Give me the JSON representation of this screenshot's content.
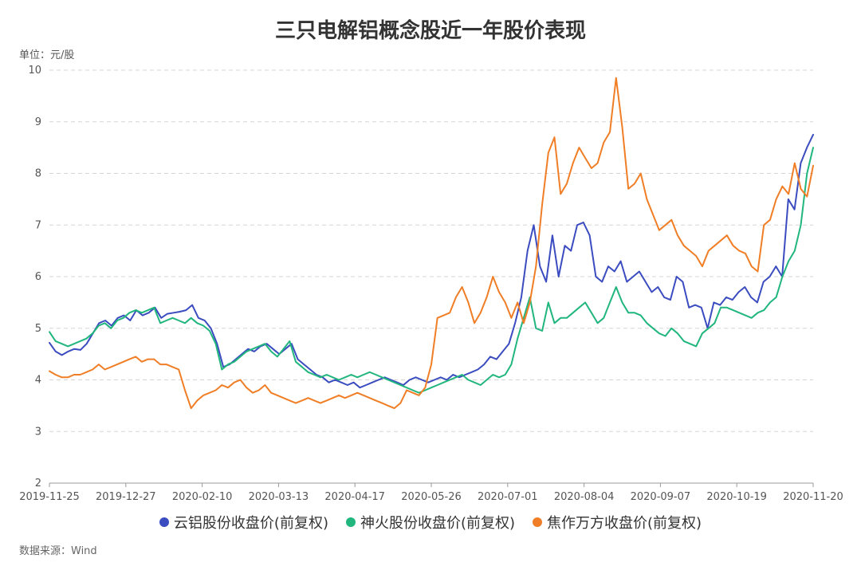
{
  "chart_data": {
    "type": "line",
    "title": "三只电解铝概念股近一年股价表现",
    "unit": "单位：元/股",
    "source": "数据来源：Wind",
    "ylim": [
      2,
      10
    ],
    "yticks": [
      "2",
      "3",
      "4",
      "5",
      "6",
      "7",
      "8",
      "9",
      "10"
    ],
    "xticks": [
      "2019-11-25",
      "2019-12-27",
      "2020-02-10",
      "2020-03-13",
      "2020-04-17",
      "2020-05-26",
      "2020-07-01",
      "2020-08-04",
      "2020-09-07",
      "2020-10-19",
      "2020-11-20"
    ],
    "grid": true,
    "legend_position": "bottom",
    "series": [
      {
        "name": "云铝股份收盘价(前复权)",
        "color": "#3b4cc0",
        "values": [
          4.72,
          4.55,
          4.48,
          4.55,
          4.6,
          4.58,
          4.7,
          4.9,
          5.1,
          5.15,
          5.05,
          5.2,
          5.25,
          5.15,
          5.35,
          5.25,
          5.3,
          5.4,
          5.2,
          5.28,
          5.3,
          5.32,
          5.35,
          5.45,
          5.2,
          5.15,
          5.0,
          4.7,
          4.25,
          4.3,
          4.4,
          4.5,
          4.6,
          4.55,
          4.65,
          4.7,
          4.6,
          4.5,
          4.6,
          4.7,
          4.4,
          4.3,
          4.2,
          4.1,
          4.05,
          3.95,
          4.0,
          3.95,
          3.9,
          3.95,
          3.85,
          3.9,
          3.95,
          4.0,
          4.05,
          4.0,
          3.95,
          3.9,
          4.0,
          4.05,
          4.0,
          3.95,
          4.0,
          4.05,
          4.0,
          4.1,
          4.05,
          4.1,
          4.15,
          4.2,
          4.3,
          4.45,
          4.4,
          4.55,
          4.7,
          5.1,
          5.6,
          6.5,
          7.0,
          6.2,
          5.9,
          6.8,
          6.0,
          6.6,
          6.5,
          7.0,
          7.05,
          6.8,
          6.0,
          5.9,
          6.2,
          6.1,
          6.3,
          5.9,
          6.0,
          6.1,
          5.9,
          5.7,
          5.8,
          5.6,
          5.55,
          6.0,
          5.9,
          5.4,
          5.45,
          5.4,
          5.0,
          5.5,
          5.45,
          5.6,
          5.55,
          5.7,
          5.8,
          5.6,
          5.5,
          5.9,
          6.0,
          6.2,
          6.0,
          7.5,
          7.3,
          8.2,
          8.5,
          8.75
        ]
      },
      {
        "name": "神火股份收盘价(前复权)",
        "color": "#21b67e",
        "values": [
          4.93,
          4.75,
          4.7,
          4.65,
          4.7,
          4.75,
          4.8,
          4.9,
          5.05,
          5.1,
          5.0,
          5.15,
          5.2,
          5.3,
          5.35,
          5.3,
          5.35,
          5.4,
          5.1,
          5.15,
          5.2,
          5.15,
          5.1,
          5.2,
          5.1,
          5.05,
          4.95,
          4.7,
          4.2,
          4.3,
          4.35,
          4.45,
          4.55,
          4.6,
          4.65,
          4.7,
          4.55,
          4.45,
          4.6,
          4.75,
          4.35,
          4.25,
          4.15,
          4.1,
          4.05,
          4.1,
          4.05,
          4.0,
          4.05,
          4.1,
          4.05,
          4.1,
          4.15,
          4.1,
          4.05,
          4.0,
          3.95,
          3.9,
          3.85,
          3.8,
          3.75,
          3.8,
          3.85,
          3.9,
          3.95,
          4.0,
          4.05,
          4.1,
          4.0,
          3.95,
          3.9,
          4.0,
          4.1,
          4.05,
          4.1,
          4.3,
          4.8,
          5.2,
          5.6,
          5.0,
          4.95,
          5.5,
          5.1,
          5.2,
          5.2,
          5.3,
          5.4,
          5.5,
          5.3,
          5.1,
          5.2,
          5.5,
          5.8,
          5.5,
          5.3,
          5.3,
          5.25,
          5.1,
          5.0,
          4.9,
          4.85,
          5.0,
          4.9,
          4.75,
          4.7,
          4.65,
          4.9,
          5.0,
          5.1,
          5.4,
          5.4,
          5.35,
          5.3,
          5.25,
          5.2,
          5.3,
          5.35,
          5.5,
          5.6,
          6.0,
          6.3,
          6.5,
          7.0,
          8.0,
          8.5
        ]
      },
      {
        "name": "焦作万方收盘价(前复权)",
        "color": "#f07e26",
        "values": [
          4.17,
          4.1,
          4.05,
          4.05,
          4.1,
          4.1,
          4.15,
          4.2,
          4.3,
          4.2,
          4.25,
          4.3,
          4.35,
          4.4,
          4.45,
          4.35,
          4.4,
          4.4,
          4.3,
          4.3,
          4.25,
          4.2,
          3.8,
          3.45,
          3.6,
          3.7,
          3.75,
          3.8,
          3.9,
          3.85,
          3.95,
          4.0,
          3.85,
          3.75,
          3.8,
          3.9,
          3.75,
          3.7,
          3.65,
          3.6,
          3.55,
          3.6,
          3.65,
          3.6,
          3.55,
          3.6,
          3.65,
          3.7,
          3.65,
          3.7,
          3.75,
          3.7,
          3.65,
          3.6,
          3.55,
          3.5,
          3.45,
          3.55,
          3.8,
          3.75,
          3.7,
          3.85,
          4.3,
          5.2,
          5.25,
          5.3,
          5.6,
          5.8,
          5.5,
          5.1,
          5.3,
          5.6,
          6.0,
          5.7,
          5.5,
          5.2,
          5.5,
          5.1,
          5.5,
          6.2,
          7.4,
          8.4,
          8.7,
          7.6,
          7.8,
          8.2,
          8.5,
          8.3,
          8.1,
          8.2,
          8.6,
          8.8,
          9.85,
          8.9,
          7.7,
          7.8,
          8.0,
          7.5,
          7.2,
          6.9,
          7.0,
          7.1,
          6.8,
          6.6,
          6.5,
          6.4,
          6.2,
          6.5,
          6.6,
          6.7,
          6.8,
          6.6,
          6.5,
          6.45,
          6.2,
          6.1,
          7.0,
          7.1,
          7.5,
          7.75,
          7.6,
          8.2,
          7.7,
          7.55,
          8.15
        ]
      }
    ]
  }
}
